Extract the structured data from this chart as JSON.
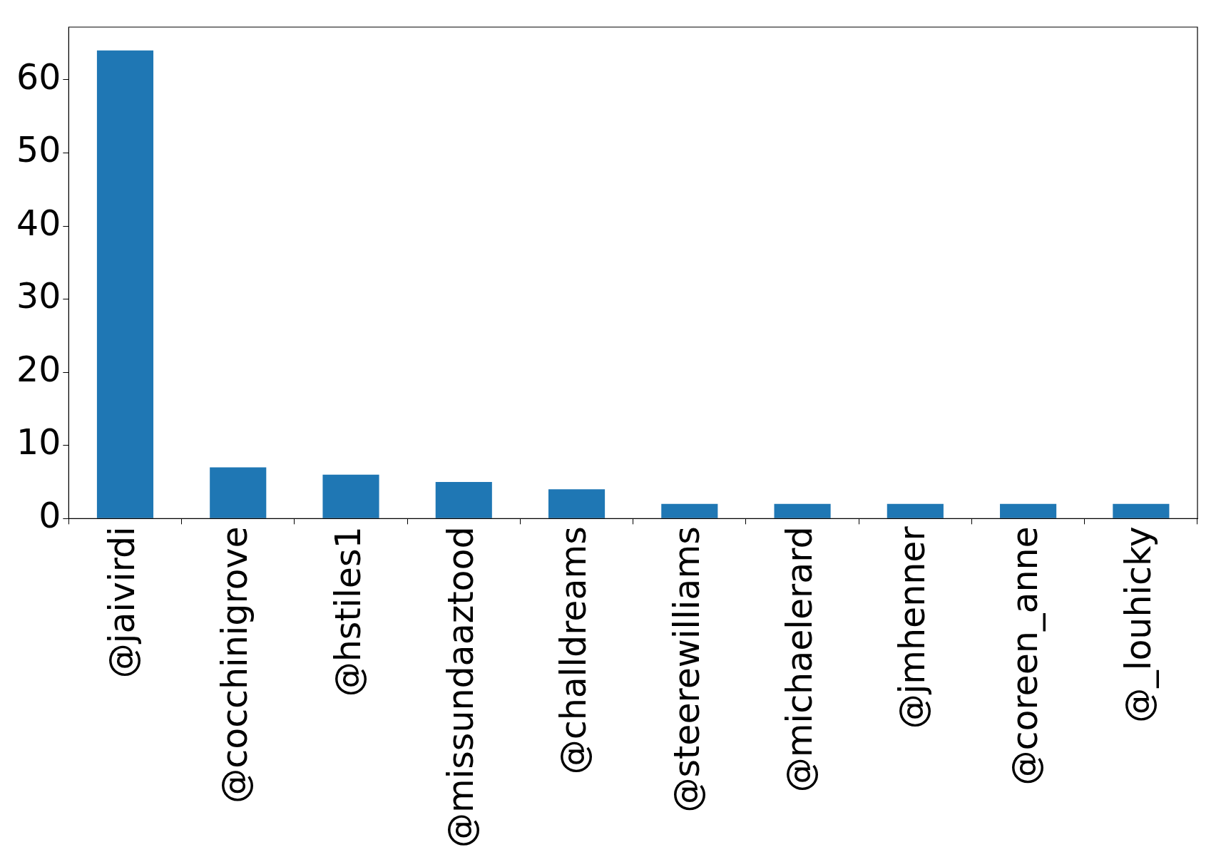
{
  "chart_data": {
    "type": "bar",
    "categories": [
      "@jaivirdi",
      "@cocchinigrove",
      "@hstiles1",
      "@missundaaztood",
      "@challdreams",
      "@steerewilliams",
      "@michaelerard",
      "@jmhenner",
      "@coreen_anne",
      "@_louhicky"
    ],
    "values": [
      64,
      7,
      6,
      5,
      4,
      2,
      2,
      2,
      2,
      2
    ],
    "color": "#1f77b4",
    "ylim": [
      0,
      67.2
    ],
    "yticks": [
      0,
      10,
      20,
      30,
      40,
      50,
      60
    ]
  }
}
